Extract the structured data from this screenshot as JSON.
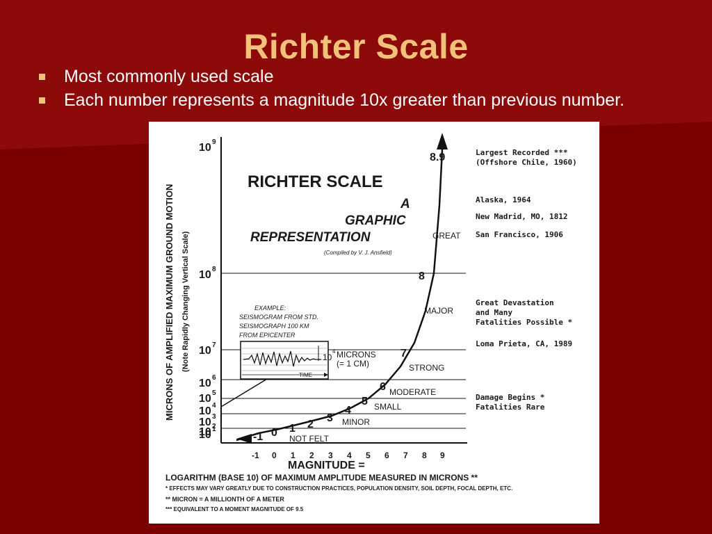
{
  "slide": {
    "title": "Richter Scale",
    "bullets": [
      "Most commonly used scale",
      "Each number represents a magnitude 10x greater than previous number."
    ]
  },
  "colors": {
    "background": "#7a0000",
    "title": "#f2c27a",
    "bullet_marker": "#f2c27a",
    "text": "#ffffff"
  },
  "figure": {
    "title_line1": "RICHTER SCALE",
    "title_line2": "A",
    "title_line3": "GRAPHIC",
    "title_line4": "REPRESENTATION",
    "credit": "(Compiled by V. J. Ansfield)",
    "y_axis_title_main": "MICRONS OF AMPLIFIED MAXIMUM GROUND MOTION",
    "y_axis_title_note": "(Note Rapidly Changing Vertical Scale)",
    "y_ticks": [
      {
        "base": "10",
        "exp": "9"
      },
      {
        "base": "10",
        "exp": "8"
      },
      {
        "base": "10",
        "exp": "7"
      },
      {
        "base": "10",
        "exp": "6"
      },
      {
        "base": "10",
        "exp": "5"
      },
      {
        "base": "10",
        "exp": "4"
      },
      {
        "base": "10",
        "exp": "3"
      },
      {
        "base": "10",
        "exp": "2"
      },
      {
        "base": "10",
        "exp": "1"
      }
    ],
    "x_ticks": [
      "-1",
      "0",
      "1",
      "2",
      "3",
      "4",
      "5",
      "6",
      "7",
      "8",
      "9"
    ],
    "x_axis_title": "MAGNITUDE =",
    "x_axis_subtitle": "LOGARITHM (BASE 10) OF MAXIMUM AMPLITUDE MEASURED IN MICRONS **",
    "footnotes": [
      "* EFFECTS MAY VARY GREATLY DUE TO CONSTRUCTION PRACTICES, POPULATION DENSITY, SOIL DEPTH, FOCAL DEPTH, ETC.",
      "** MICRON = A MILLIONTH OF A METER",
      "*** EQUIVALENT TO A MOMENT MAGNITUDE OF 9.5"
    ],
    "curve_labels": [
      "-1",
      "0",
      "1",
      "2",
      "3",
      "4",
      "5",
      "6",
      "7",
      "8",
      "8.9"
    ],
    "bands": [
      "NOT FELT",
      "MINOR",
      "SMALL",
      "MODERATE",
      "STRONG",
      "MAJOR",
      "GREAT"
    ],
    "example": {
      "line1": "EXAMPLE:",
      "line2": "SEISMOGRAM FROM STD.",
      "line3": "SEISMOGRAPH 100 KM",
      "line4": "FROM EPICENTER",
      "microns_base": "10",
      "microns_exp": "4",
      "microns_text": "MICRONS",
      "cm_text": "(= 1 CM)",
      "time_label": "TIME"
    },
    "events": [
      {
        "text1": "Largest Recorded ***",
        "text2": "(Offshore Chile, 1960)"
      },
      {
        "text1": "Alaska, 1964"
      },
      {
        "text1": "New Madrid, MO, 1812"
      },
      {
        "text1": "San Francisco, 1906"
      },
      {
        "text1": "Great Devastation",
        "text2": "and Many",
        "text3": "Fatalities Possible *"
      },
      {
        "text1": "Loma Prieta, CA,  1989"
      },
      {
        "text1": "Damage Begins *",
        "text2": "Fatalities Rare"
      }
    ]
  }
}
